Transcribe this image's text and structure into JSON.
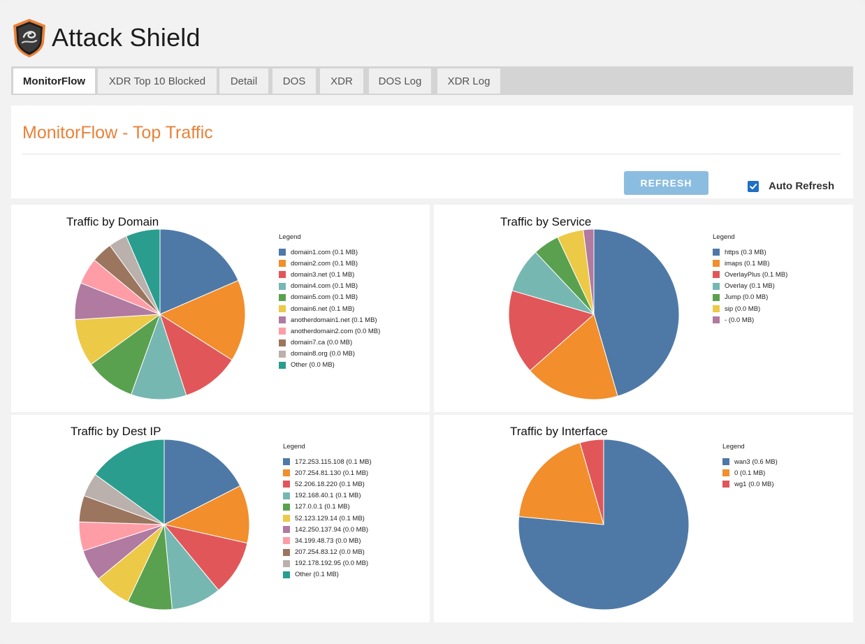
{
  "app": {
    "title": "Attack Shield",
    "accent_color": "#e8823a"
  },
  "tabs": [
    {
      "label": "MonitorFlow",
      "active": true
    },
    {
      "label": "XDR Top 10 Blocked",
      "active": false
    },
    {
      "label": "Detail",
      "active": false
    },
    {
      "label": "DOS",
      "active": false
    },
    {
      "label": "XDR",
      "active": false
    },
    {
      "label": "DOS Log",
      "active": false
    },
    {
      "label": "XDR Log",
      "active": false
    }
  ],
  "header": {
    "title": "MonitorFlow - Top Traffic",
    "refresh_label": "REFRESH",
    "auto_refresh_label": "Auto Refresh",
    "auto_refresh_checked": true
  },
  "chart_data": [
    {
      "type": "pie",
      "title": "Traffic by Domain",
      "legend_title": "Legend",
      "slices": [
        {
          "label": "domain1.com (0.1 MB)",
          "value": 18.5,
          "color": "#4e79a7"
        },
        {
          "label": "domain2.com (0.1 MB)",
          "value": 15.5,
          "color": "#f28e2b"
        },
        {
          "label": "domain3.net (0.1 MB)",
          "value": 11,
          "color": "#e15759"
        },
        {
          "label": "domain4.com (0.1 MB)",
          "value": 10.5,
          "color": "#76b7b2"
        },
        {
          "label": "domain5.com (0.1 MB)",
          "value": 9.5,
          "color": "#59a14f"
        },
        {
          "label": "domain6.net (0.1 MB)",
          "value": 9,
          "color": "#edc948"
        },
        {
          "label": "anotherdomain1.net (0.1 MB)",
          "value": 7,
          "color": "#b07aa1"
        },
        {
          "label": "anotherdomain2.com (0.0 MB)",
          "value": 5,
          "color": "#ff9da7"
        },
        {
          "label": "domain7.ca (0.0 MB)",
          "value": 4,
          "color": "#9c755f"
        },
        {
          "label": "domain8.org (0.0 MB)",
          "value": 3.5,
          "color": "#bab0ac"
        },
        {
          "label": "Other (0.0 MB)",
          "value": 6.5,
          "color": "#2a9d8f"
        }
      ]
    },
    {
      "type": "pie",
      "title": "Traffic by Service",
      "legend_title": "Legend",
      "slices": [
        {
          "label": "https (0.3 MB)",
          "value": 45.5,
          "color": "#4e79a7"
        },
        {
          "label": "imaps (0.1 MB)",
          "value": 18,
          "color": "#f28e2b"
        },
        {
          "label": "OverlayPlus (0.1 MB)",
          "value": 16,
          "color": "#e15759"
        },
        {
          "label": "Overlay (0.1 MB)",
          "value": 8.5,
          "color": "#76b7b2"
        },
        {
          "label": "Jump (0.0 MB)",
          "value": 5,
          "color": "#59a14f"
        },
        {
          "label": "sip (0.0 MB)",
          "value": 5,
          "color": "#edc948"
        },
        {
          "label": "- (0.0 MB)",
          "value": 2,
          "color": "#b07aa1"
        }
      ]
    },
    {
      "type": "pie",
      "title": "Traffic by Dest IP",
      "legend_title": "Legend",
      "slices": [
        {
          "label": "172.253.115.108 (0.1 MB)",
          "value": 17.5,
          "color": "#4e79a7"
        },
        {
          "label": "207.254.81.130 (0.1 MB)",
          "value": 11,
          "color": "#f28e2b"
        },
        {
          "label": "52.206.18.220 (0.1 MB)",
          "value": 10.5,
          "color": "#e15759"
        },
        {
          "label": "192.168.40.1 (0.1 MB)",
          "value": 9.5,
          "color": "#76b7b2"
        },
        {
          "label": "127.0.0.1 (0.1 MB)",
          "value": 8.5,
          "color": "#59a14f"
        },
        {
          "label": "52.123.129.14 (0.1 MB)",
          "value": 7,
          "color": "#edc948"
        },
        {
          "label": "142.250.137.94 (0.0 MB)",
          "value": 6,
          "color": "#b07aa1"
        },
        {
          "label": "34.199.48.73 (0.0 MB)",
          "value": 5.5,
          "color": "#ff9da7"
        },
        {
          "label": "207.254.83.12 (0.0 MB)",
          "value": 5,
          "color": "#9c755f"
        },
        {
          "label": "192.178.192.95 (0.0 MB)",
          "value": 4.5,
          "color": "#bab0ac"
        },
        {
          "label": "Other (0.1 MB)",
          "value": 15,
          "color": "#2a9d8f"
        }
      ]
    },
    {
      "type": "pie",
      "title": "Traffic by Interface",
      "legend_title": "Legend",
      "slices": [
        {
          "label": "wan3 (0.6 MB)",
          "value": 76.5,
          "color": "#4e79a7"
        },
        {
          "label": "0 (0.1 MB)",
          "value": 19,
          "color": "#f28e2b"
        },
        {
          "label": "wg1 (0.0 MB)",
          "value": 4.5,
          "color": "#e15759"
        }
      ]
    }
  ]
}
